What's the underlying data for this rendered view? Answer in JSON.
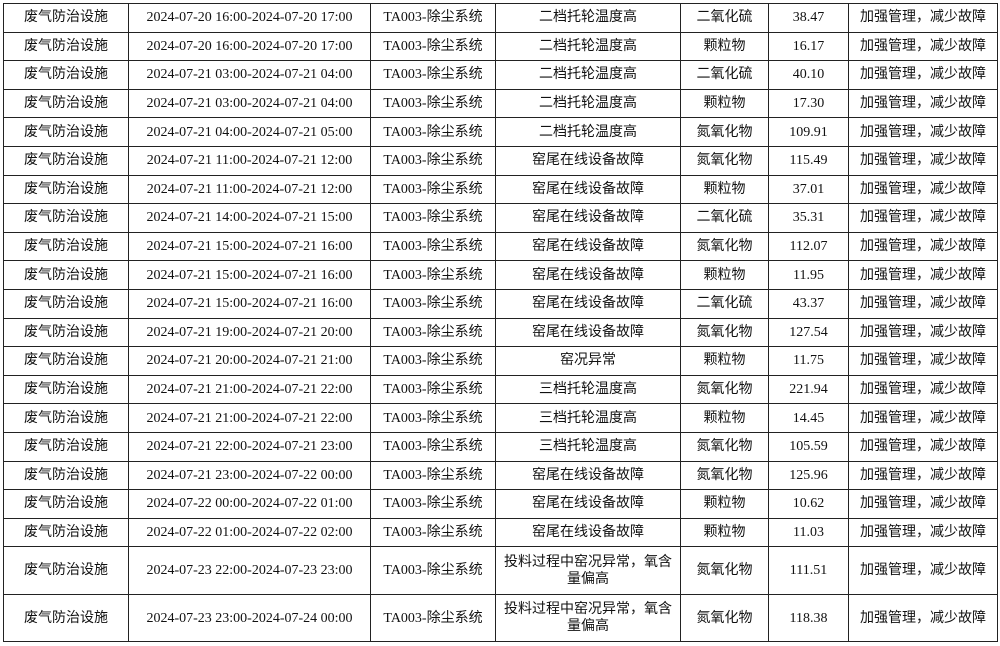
{
  "rows": [
    {
      "facility": "废气防治设施",
      "period": "2024-07-20 16:00-2024-07-20 17:00",
      "system": "TA003-除尘系统",
      "reason": "二档托轮温度高",
      "pollutant": "二氧化硫",
      "value": "38.47",
      "measure": "加强管理，减少故障"
    },
    {
      "facility": "废气防治设施",
      "period": "2024-07-20 16:00-2024-07-20 17:00",
      "system": "TA003-除尘系统",
      "reason": "二档托轮温度高",
      "pollutant": "颗粒物",
      "value": "16.17",
      "measure": "加强管理，减少故障"
    },
    {
      "facility": "废气防治设施",
      "period": "2024-07-21 03:00-2024-07-21 04:00",
      "system": "TA003-除尘系统",
      "reason": "二档托轮温度高",
      "pollutant": "二氧化硫",
      "value": "40.10",
      "measure": "加强管理，减少故障"
    },
    {
      "facility": "废气防治设施",
      "period": "2024-07-21 03:00-2024-07-21 04:00",
      "system": "TA003-除尘系统",
      "reason": "二档托轮温度高",
      "pollutant": "颗粒物",
      "value": "17.30",
      "measure": "加强管理，减少故障"
    },
    {
      "facility": "废气防治设施",
      "period": "2024-07-21 04:00-2024-07-21 05:00",
      "system": "TA003-除尘系统",
      "reason": "二档托轮温度高",
      "pollutant": "氮氧化物",
      "value": "109.91",
      "measure": "加强管理，减少故障"
    },
    {
      "facility": "废气防治设施",
      "period": "2024-07-21 11:00-2024-07-21 12:00",
      "system": "TA003-除尘系统",
      "reason": "窑尾在线设备故障",
      "pollutant": "氮氧化物",
      "value": "115.49",
      "measure": "加强管理，减少故障"
    },
    {
      "facility": "废气防治设施",
      "period": "2024-07-21 11:00-2024-07-21 12:00",
      "system": "TA003-除尘系统",
      "reason": "窑尾在线设备故障",
      "pollutant": "颗粒物",
      "value": "37.01",
      "measure": "加强管理，减少故障"
    },
    {
      "facility": "废气防治设施",
      "period": "2024-07-21 14:00-2024-07-21 15:00",
      "system": "TA003-除尘系统",
      "reason": "窑尾在线设备故障",
      "pollutant": "二氧化硫",
      "value": "35.31",
      "measure": "加强管理，减少故障"
    },
    {
      "facility": "废气防治设施",
      "period": "2024-07-21 15:00-2024-07-21 16:00",
      "system": "TA003-除尘系统",
      "reason": "窑尾在线设备故障",
      "pollutant": "氮氧化物",
      "value": "112.07",
      "measure": "加强管理，减少故障"
    },
    {
      "facility": "废气防治设施",
      "period": "2024-07-21 15:00-2024-07-21 16:00",
      "system": "TA003-除尘系统",
      "reason": "窑尾在线设备故障",
      "pollutant": "颗粒物",
      "value": "11.95",
      "measure": "加强管理，减少故障"
    },
    {
      "facility": "废气防治设施",
      "period": "2024-07-21 15:00-2024-07-21 16:00",
      "system": "TA003-除尘系统",
      "reason": "窑尾在线设备故障",
      "pollutant": "二氧化硫",
      "value": "43.37",
      "measure": "加强管理，减少故障"
    },
    {
      "facility": "废气防治设施",
      "period": "2024-07-21 19:00-2024-07-21 20:00",
      "system": "TA003-除尘系统",
      "reason": "窑尾在线设备故障",
      "pollutant": "氮氧化物",
      "value": "127.54",
      "measure": "加强管理，减少故障"
    },
    {
      "facility": "废气防治设施",
      "period": "2024-07-21 20:00-2024-07-21 21:00",
      "system": "TA003-除尘系统",
      "reason": "窑况异常",
      "pollutant": "颗粒物",
      "value": "11.75",
      "measure": "加强管理，减少故障"
    },
    {
      "facility": "废气防治设施",
      "period": "2024-07-21 21:00-2024-07-21 22:00",
      "system": "TA003-除尘系统",
      "reason": "三档托轮温度高",
      "pollutant": "氮氧化物",
      "value": "221.94",
      "measure": "加强管理，减少故障"
    },
    {
      "facility": "废气防治设施",
      "period": "2024-07-21 21:00-2024-07-21 22:00",
      "system": "TA003-除尘系统",
      "reason": "三档托轮温度高",
      "pollutant": "颗粒物",
      "value": "14.45",
      "measure": "加强管理，减少故障"
    },
    {
      "facility": "废气防治设施",
      "period": "2024-07-21 22:00-2024-07-21 23:00",
      "system": "TA003-除尘系统",
      "reason": "三档托轮温度高",
      "pollutant": "氮氧化物",
      "value": "105.59",
      "measure": "加强管理，减少故障"
    },
    {
      "facility": "废气防治设施",
      "period": "2024-07-21 23:00-2024-07-22 00:00",
      "system": "TA003-除尘系统",
      "reason": "窑尾在线设备故障",
      "pollutant": "氮氧化物",
      "value": "125.96",
      "measure": "加强管理，减少故障"
    },
    {
      "facility": "废气防治设施",
      "period": "2024-07-22 00:00-2024-07-22 01:00",
      "system": "TA003-除尘系统",
      "reason": "窑尾在线设备故障",
      "pollutant": "颗粒物",
      "value": "10.62",
      "measure": "加强管理，减少故障"
    },
    {
      "facility": "废气防治设施",
      "period": "2024-07-22 01:00-2024-07-22 02:00",
      "system": "TA003-除尘系统",
      "reason": "窑尾在线设备故障",
      "pollutant": "颗粒物",
      "value": "11.03",
      "measure": "加强管理，减少故障"
    },
    {
      "facility": "废气防治设施",
      "period": "2024-07-23 22:00-2024-07-23 23:00",
      "system": "TA003-除尘系统",
      "reason": "投料过程中窑况异常，氧含量偏高",
      "pollutant": "氮氧化物",
      "value": "111.51",
      "measure": "加强管理，减少故障"
    },
    {
      "facility": "废气防治设施",
      "period": "2024-07-23 23:00-2024-07-24 00:00",
      "system": "TA003-除尘系统",
      "reason": "投料过程中窑况异常，氧含量偏高",
      "pollutant": "氮氧化物",
      "value": "118.38",
      "measure": "加强管理，减少故障"
    }
  ]
}
